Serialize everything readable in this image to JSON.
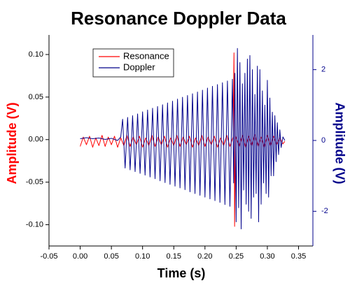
{
  "chart_data": {
    "type": "line",
    "title": "Resonance Doppler Data",
    "x_label": "Time (s)",
    "y_label": "Amplitude (V)",
    "y2_label": "Amplitude (V)",
    "xlim": [
      -0.05,
      0.373
    ],
    "ylim": [
      -0.125,
      0.123
    ],
    "y2lim": [
      -2.98,
      2.98
    ],
    "xticks": [
      -0.05,
      {
        "value": 0,
        "label": "0.00"
      },
      0.05,
      {
        "value": 0.1,
        "label": "0.10"
      },
      0.15,
      {
        "value": 0.2,
        "label": "0.20"
      },
      0.25,
      {
        "value": 0.3,
        "label": "0.30"
      },
      0.35
    ],
    "yticks": [
      {
        "value": -0.1,
        "label": "-0.10"
      },
      -0.05,
      {
        "value": 0,
        "label": "0.00"
      },
      0.05,
      {
        "value": 0.1,
        "label": "0.10"
      }
    ],
    "y2ticks": [
      -2,
      0,
      2
    ],
    "legend": "upper left",
    "series": [
      {
        "name": "Resonance",
        "color": "#ff0000",
        "axis": "y",
        "x": [
          0,
          0.005,
          0.01,
          0.015,
          0.02,
          0.025,
          0.03,
          0.035,
          0.04,
          0.045,
          0.05,
          0.055,
          0.06,
          0.065,
          0.07,
          0.075,
          0.08,
          0.085,
          0.09,
          0.095,
          0.1,
          0.105,
          0.11,
          0.115,
          0.12,
          0.125,
          0.13,
          0.135,
          0.14,
          0.145,
          0.15,
          0.155,
          0.16,
          0.165,
          0.17,
          0.175,
          0.18,
          0.185,
          0.19,
          0.195,
          0.2,
          0.205,
          0.21,
          0.215,
          0.22,
          0.225,
          0.23,
          0.235,
          0.24,
          0.245,
          0.2465,
          0.2475,
          0.249,
          0.255,
          0.26,
          0.265,
          0.27,
          0.275,
          0.28,
          0.285,
          0.29,
          0.295,
          0.3,
          0.305,
          0.31,
          0.315,
          0.32,
          0.325,
          0.328
        ],
        "values": [
          -0.008,
          0.003,
          -0.006,
          0.004,
          -0.009,
          0.002,
          -0.007,
          0.005,
          -0.008,
          0.003,
          -0.006,
          0.004,
          -0.009,
          0.002,
          -0.007,
          0.005,
          -0.008,
          0.003,
          -0.006,
          0.004,
          -0.009,
          0.002,
          -0.007,
          0.005,
          -0.008,
          0.003,
          -0.006,
          0.004,
          -0.009,
          0.002,
          -0.007,
          0.005,
          -0.008,
          0.003,
          -0.006,
          0.004,
          -0.009,
          0.002,
          -0.007,
          0.005,
          -0.008,
          0.003,
          -0.006,
          0.004,
          -0.009,
          0.002,
          -0.007,
          0.005,
          -0.008,
          0.003,
          0.102,
          -0.102,
          0.004,
          -0.008,
          0.005,
          -0.009,
          0.004,
          -0.007,
          0.006,
          -0.008,
          0.003,
          -0.009,
          0.005,
          -0.007,
          0.004,
          -0.006,
          0.002,
          -0.005,
          -0.002
        ]
      },
      {
        "name": "Doppler",
        "color": "#00008b",
        "axis": "y2",
        "x": [
          0,
          0.01,
          0.02,
          0.03,
          0.04,
          0.05,
          0.06,
          0.065,
          0.068,
          0.072,
          0.076,
          0.08,
          0.084,
          0.088,
          0.092,
          0.096,
          0.1,
          0.104,
          0.108,
          0.112,
          0.116,
          0.12,
          0.124,
          0.128,
          0.132,
          0.136,
          0.14,
          0.144,
          0.148,
          0.152,
          0.156,
          0.16,
          0.164,
          0.168,
          0.172,
          0.176,
          0.18,
          0.184,
          0.188,
          0.192,
          0.196,
          0.2,
          0.204,
          0.208,
          0.212,
          0.216,
          0.22,
          0.224,
          0.228,
          0.232,
          0.236,
          0.24,
          0.244,
          0.246,
          0.248,
          0.25,
          0.252,
          0.254,
          0.256,
          0.258,
          0.26,
          0.262,
          0.264,
          0.266,
          0.268,
          0.27,
          0.272,
          0.274,
          0.276,
          0.278,
          0.28,
          0.282,
          0.284,
          0.286,
          0.288,
          0.29,
          0.292,
          0.294,
          0.296,
          0.298,
          0.3,
          0.302,
          0.304,
          0.306,
          0.308,
          0.31,
          0.312,
          0.314,
          0.316,
          0.318,
          0.32,
          0.322,
          0.325,
          0.328
        ],
        "values": [
          0.05,
          0.08,
          0.05,
          0.07,
          0.03,
          0.06,
          0,
          0.1,
          0.6,
          -0.78,
          0.65,
          -0.83,
          0.7,
          -0.88,
          0.75,
          -0.93,
          0.81,
          -0.98,
          0.86,
          -1.03,
          0.91,
          -1.08,
          0.96,
          -1.14,
          1.01,
          -1.19,
          1.06,
          -1.24,
          1.11,
          -1.29,
          1.17,
          -1.34,
          1.22,
          -1.39,
          1.27,
          -1.45,
          1.32,
          -1.5,
          1.37,
          -1.55,
          1.42,
          -1.6,
          1.48,
          -1.65,
          1.53,
          -1.7,
          1.58,
          -1.75,
          1.63,
          -1.81,
          1.68,
          -1.86,
          1.73,
          -1.2,
          1.9,
          -2.3,
          2.6,
          -1.9,
          2.2,
          -2.5,
          1.6,
          -1.4,
          1.9,
          -1.8,
          2.3,
          -2,
          2.4,
          -2.2,
          2,
          -1.6,
          1.3,
          -1.5,
          2.1,
          -2.3,
          2,
          -1.8,
          1.4,
          -1.2,
          1,
          -1.5,
          1.7,
          -1.6,
          1.2,
          -1,
          0.8,
          -1,
          0.7,
          -0.6,
          0.5,
          -0.4,
          0.3,
          -0.2,
          0.1,
          0
        ]
      }
    ]
  }
}
